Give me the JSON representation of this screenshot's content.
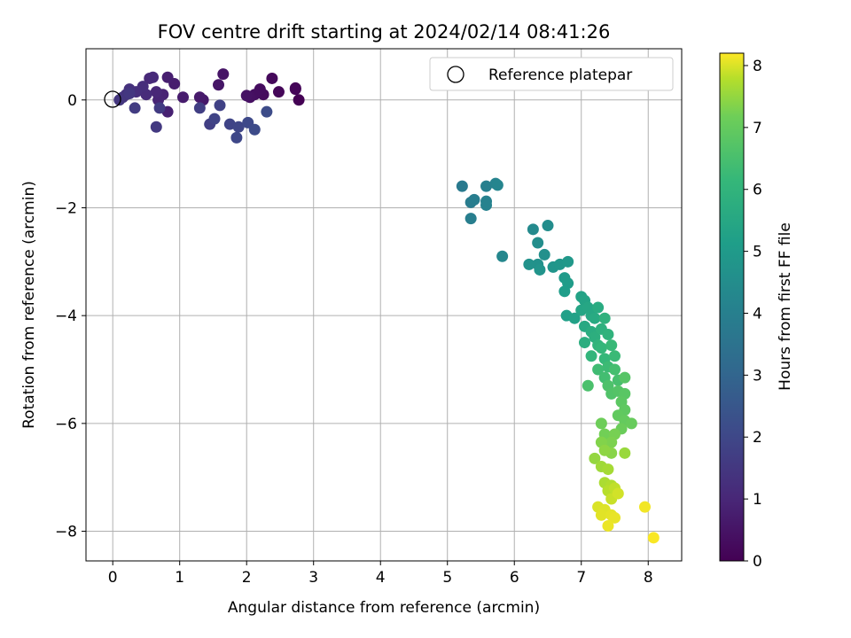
{
  "chart_data": {
    "type": "scatter",
    "title": "FOV centre drift starting at 2024/02/14 08:41:26",
    "xlabel": "Angular distance from reference (arcmin)",
    "ylabel": "Rotation from reference (arcmin)",
    "xlim": [
      -0.4,
      8.5
    ],
    "ylim": [
      -8.55,
      0.95
    ],
    "xticks": [
      0,
      1,
      2,
      3,
      4,
      5,
      6,
      7,
      8
    ],
    "yticks": [
      0,
      -2,
      -4,
      -6,
      -8
    ],
    "xtick_labels": [
      "0",
      "1",
      "2",
      "3",
      "4",
      "5",
      "6",
      "7",
      "8"
    ],
    "ytick_labels": [
      "0",
      "−2",
      "−4",
      "−6",
      "−8"
    ],
    "grid": true,
    "legend": {
      "position": "top-right",
      "entries": [
        "Reference platepar"
      ]
    },
    "reference": {
      "x": 0,
      "y": 0,
      "label": "Reference platepar"
    },
    "colorbar": {
      "label": "Hours from first FF file",
      "range": [
        0,
        8.2
      ],
      "ticks": [
        "0",
        "1",
        "2",
        "3",
        "4",
        "5",
        "6",
        "7",
        "8"
      ],
      "colormap": "viridis"
    },
    "points": [
      [
        2.78,
        0.0,
        0.0
      ],
      [
        2.73,
        0.22,
        0.06
      ],
      [
        2.73,
        0.2,
        0.1
      ],
      [
        2.48,
        0.15,
        0.15
      ],
      [
        2.38,
        0.4,
        0.2
      ],
      [
        2.25,
        0.1,
        0.25
      ],
      [
        2.2,
        0.2,
        0.3
      ],
      [
        2.12,
        0.1,
        0.35
      ],
      [
        2.05,
        0.05,
        0.4
      ],
      [
        2.0,
        0.08,
        0.45
      ],
      [
        1.65,
        0.48,
        0.5
      ],
      [
        1.58,
        0.28,
        0.55
      ],
      [
        1.35,
        0.0,
        0.6
      ],
      [
        1.3,
        0.05,
        0.65
      ],
      [
        1.05,
        0.05,
        0.7
      ],
      [
        0.92,
        0.3,
        0.75
      ],
      [
        0.82,
        0.42,
        0.8
      ],
      [
        0.82,
        -0.22,
        0.85
      ],
      [
        0.75,
        0.1,
        0.9
      ],
      [
        0.68,
        0.0,
        0.95
      ],
      [
        0.65,
        0.15,
        1.0
      ],
      [
        0.55,
        0.4,
        1.05
      ],
      [
        0.6,
        0.42,
        1.1
      ],
      [
        0.5,
        0.1,
        1.15
      ],
      [
        0.45,
        0.25,
        1.2
      ],
      [
        0.35,
        0.15,
        1.25
      ],
      [
        0.25,
        0.2,
        1.3
      ],
      [
        0.2,
        0.1,
        1.35
      ],
      [
        0.15,
        0.05,
        1.4
      ],
      [
        0.1,
        0.0,
        1.45
      ],
      [
        0.25,
        0.12,
        1.5
      ],
      [
        0.65,
        -0.5,
        1.55
      ],
      [
        0.7,
        -0.15,
        1.6
      ],
      [
        0.33,
        -0.15,
        1.65
      ],
      [
        1.3,
        -0.15,
        1.7
      ],
      [
        1.45,
        -0.45,
        1.75
      ],
      [
        1.6,
        -0.1,
        1.8
      ],
      [
        1.52,
        -0.35,
        1.85
      ],
      [
        1.75,
        -0.45,
        1.9
      ],
      [
        1.88,
        -0.5,
        1.95
      ],
      [
        1.85,
        -0.7,
        2.0
      ],
      [
        2.02,
        -0.42,
        2.05
      ],
      [
        2.12,
        -0.55,
        2.1
      ],
      [
        2.3,
        -0.22,
        2.15
      ],
      [
        5.22,
        -1.6,
        3.8
      ],
      [
        5.35,
        -1.9,
        3.85
      ],
      [
        5.4,
        -1.85,
        3.9
      ],
      [
        5.35,
        -2.2,
        3.95
      ],
      [
        5.58,
        -1.6,
        4.0
      ],
      [
        5.58,
        -1.88,
        4.05
      ],
      [
        5.58,
        -1.95,
        4.1
      ],
      [
        5.72,
        -1.55,
        4.15
      ],
      [
        5.75,
        -1.58,
        4.2
      ],
      [
        5.82,
        -2.9,
        4.3
      ],
      [
        6.28,
        -2.4,
        4.4
      ],
      [
        6.5,
        -2.33,
        4.5
      ],
      [
        6.35,
        -2.65,
        4.55
      ],
      [
        6.45,
        -2.87,
        4.6
      ],
      [
        6.35,
        -3.05,
        4.65
      ],
      [
        6.22,
        -3.05,
        4.7
      ],
      [
        6.38,
        -3.15,
        4.75
      ],
      [
        6.58,
        -3.1,
        4.8
      ],
      [
        6.68,
        -3.05,
        4.85
      ],
      [
        6.8,
        -3.0,
        4.9
      ],
      [
        6.75,
        -3.3,
        5.0
      ],
      [
        6.8,
        -3.4,
        5.05
      ],
      [
        6.75,
        -3.55,
        5.1
      ],
      [
        6.78,
        -4.0,
        5.2
      ],
      [
        6.9,
        -4.05,
        5.25
      ],
      [
        7.0,
        -3.65,
        5.3
      ],
      [
        7.05,
        -3.72,
        5.35
      ],
      [
        7.0,
        -3.9,
        5.4
      ],
      [
        7.1,
        -3.85,
        5.45
      ],
      [
        7.15,
        -4.0,
        5.5
      ],
      [
        7.05,
        -4.2,
        5.55
      ],
      [
        7.2,
        -4.05,
        5.6
      ],
      [
        7.25,
        -3.85,
        5.65
      ],
      [
        7.15,
        -4.3,
        5.7
      ],
      [
        7.05,
        -4.5,
        5.75
      ],
      [
        7.2,
        -4.4,
        5.8
      ],
      [
        7.3,
        -4.25,
        5.85
      ],
      [
        7.35,
        -4.05,
        5.9
      ],
      [
        7.4,
        -4.35,
        5.95
      ],
      [
        7.25,
        -4.55,
        6.0
      ],
      [
        7.15,
        -4.75,
        6.05
      ],
      [
        7.3,
        -4.6,
        6.1
      ],
      [
        7.35,
        -4.8,
        6.15
      ],
      [
        7.45,
        -4.55,
        6.2
      ],
      [
        7.5,
        -4.75,
        6.25
      ],
      [
        7.4,
        -4.95,
        6.3
      ],
      [
        7.25,
        -5.0,
        6.35
      ],
      [
        7.35,
        -5.15,
        6.4
      ],
      [
        7.5,
        -5.0,
        6.45
      ],
      [
        7.55,
        -5.2,
        6.5
      ],
      [
        7.1,
        -5.3,
        6.55
      ],
      [
        7.4,
        -5.3,
        6.6
      ],
      [
        7.45,
        -5.45,
        6.65
      ],
      [
        7.55,
        -5.4,
        6.7
      ],
      [
        7.65,
        -5.15,
        6.75
      ],
      [
        7.65,
        -5.45,
        6.8
      ],
      [
        7.6,
        -5.6,
        6.85
      ],
      [
        7.65,
        -5.75,
        6.9
      ],
      [
        7.55,
        -5.85,
        6.95
      ],
      [
        7.65,
        -5.95,
        7.0
      ],
      [
        7.75,
        -6.0,
        7.05
      ],
      [
        7.6,
        -6.1,
        7.1
      ],
      [
        7.3,
        -6.0,
        7.15
      ],
      [
        7.35,
        -6.2,
        7.2
      ],
      [
        7.5,
        -6.2,
        7.25
      ],
      [
        7.45,
        -6.35,
        7.3
      ],
      [
        7.3,
        -6.35,
        7.35
      ],
      [
        7.45,
        -6.55,
        7.4
      ],
      [
        7.35,
        -6.5,
        7.45
      ],
      [
        7.2,
        -6.65,
        7.5
      ],
      [
        7.65,
        -6.55,
        7.55
      ],
      [
        7.3,
        -6.8,
        7.6
      ],
      [
        7.4,
        -6.85,
        7.65
      ],
      [
        7.35,
        -7.1,
        7.7
      ],
      [
        7.45,
        -7.15,
        7.75
      ],
      [
        7.4,
        -7.25,
        7.8
      ],
      [
        7.5,
        -7.2,
        7.85
      ],
      [
        7.45,
        -7.4,
        7.9
      ],
      [
        7.55,
        -7.3,
        7.95
      ],
      [
        7.25,
        -7.55,
        8.0
      ],
      [
        7.35,
        -7.6,
        8.02
      ],
      [
        7.3,
        -7.7,
        8.04
      ],
      [
        7.45,
        -7.7,
        8.06
      ],
      [
        7.5,
        -7.75,
        8.08
      ],
      [
        7.4,
        -7.9,
        8.1
      ],
      [
        7.95,
        -7.55,
        8.14
      ],
      [
        8.08,
        -8.12,
        8.18
      ]
    ]
  }
}
